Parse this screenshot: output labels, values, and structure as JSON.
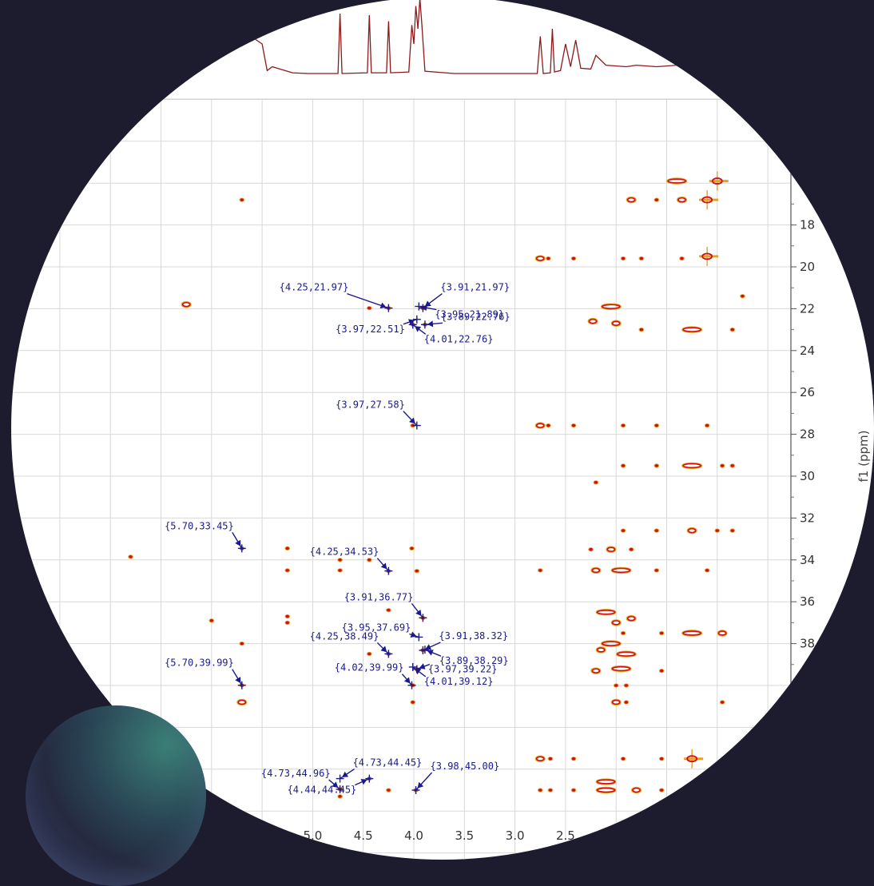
{
  "chart_data": {
    "type": "heatmap",
    "subtype": "2D NMR contour plot (HSQC/HMBC-style) with 1D projection",
    "title": "",
    "xlabel": "",
    "ylabel": "f1 (ppm)",
    "x_axis": {
      "ticks": [
        "5.0",
        "4.5",
        "4.0",
        "3.5",
        "3.0",
        "2.5"
      ],
      "reversed": true
    },
    "y_axis": {
      "ticks": [
        "18",
        "20",
        "22",
        "24",
        "26",
        "28",
        "30",
        "32",
        "34",
        "36",
        "38"
      ],
      "reversed": true,
      "position": "right"
    },
    "grid": true,
    "contour_colors": {
      "outer": "#e8a020",
      "inner": "#d01010",
      "core": "#8a0000"
    },
    "projection_color": "#8b1a1a",
    "annotation_color": "#1a1a8c",
    "annotations": [
      {
        "label": "{4.25,21.97}",
        "x": 4.25,
        "y": 21.97
      },
      {
        "label": "{3.91,21.97}",
        "x": 3.91,
        "y": 21.97
      },
      {
        "label": "{3.89,22.76}",
        "x": 3.89,
        "y": 22.76
      },
      {
        "label": "{3.95,21.89}",
        "x": 3.95,
        "y": 21.89
      },
      {
        "label": "{3.97,22.51}",
        "x": 3.97,
        "y": 22.51
      },
      {
        "label": "{4.01,22.76}",
        "x": 4.01,
        "y": 22.76
      },
      {
        "label": "{3.97,27.58}",
        "x": 3.97,
        "y": 27.58
      },
      {
        "label": "{5.70,33.45}",
        "x": 5.7,
        "y": 33.45
      },
      {
        "label": "{4.25,34.53}",
        "x": 4.25,
        "y": 34.53
      },
      {
        "label": "{3.91,36.77}",
        "x": 3.91,
        "y": 36.77
      },
      {
        "label": "{3.95,37.69}",
        "x": 3.95,
        "y": 37.69
      },
      {
        "label": "{3.91,38.32}",
        "x": 3.91,
        "y": 38.32
      },
      {
        "label": "{4.25,38.49}",
        "x": 4.25,
        "y": 38.49
      },
      {
        "label": "{3.97,39.22}",
        "x": 3.97,
        "y": 39.22
      },
      {
        "label": "{3.89,38.29}",
        "x": 3.89,
        "y": 38.29
      },
      {
        "label": "{4.02,39.99}",
        "x": 4.02,
        "y": 39.99
      },
      {
        "label": "{5.70,39.99}",
        "x": 5.7,
        "y": 39.99
      },
      {
        "label": "{4.01,39.12}",
        "x": 4.01,
        "y": 39.12
      },
      {
        "label": "{4.73,44.96}",
        "x": 4.73,
        "y": 44.96
      },
      {
        "label": "{4.73,44.45}",
        "x": 4.73,
        "y": 44.45
      },
      {
        "label": "{3.98,45.00}",
        "x": 3.98,
        "y": 45.0
      },
      {
        "label": "{4.44,44.45}",
        "x": 4.44,
        "y": 44.45
      }
    ],
    "peaks": [
      {
        "x": 5.7,
        "y": 16.8,
        "s": "dot"
      },
      {
        "x": 6.25,
        "y": 21.8,
        "s": "oval"
      },
      {
        "x": 5.7,
        "y": 33.45,
        "s": "dot"
      },
      {
        "x": 6.0,
        "y": 36.9,
        "s": "dot"
      },
      {
        "x": 5.7,
        "y": 38.0,
        "s": "dot"
      },
      {
        "x": 5.7,
        "y": 39.99,
        "s": "dot"
      },
      {
        "x": 5.7,
        "y": 40.8,
        "s": "oval"
      },
      {
        "x": 5.25,
        "y": 33.45,
        "s": "dot"
      },
      {
        "x": 5.25,
        "y": 34.5,
        "s": "dot"
      },
      {
        "x": 5.25,
        "y": 36.7,
        "s": "dot"
      },
      {
        "x": 5.25,
        "y": 37.0,
        "s": "dot"
      },
      {
        "x": 4.73,
        "y": 34.0,
        "s": "dot"
      },
      {
        "x": 4.73,
        "y": 34.5,
        "s": "dot"
      },
      {
        "x": 4.73,
        "y": 44.96,
        "s": "dot"
      },
      {
        "x": 4.73,
        "y": 45.3,
        "s": "dot"
      },
      {
        "x": 4.44,
        "y": 21.97,
        "s": "dot"
      },
      {
        "x": 4.44,
        "y": 34.0,
        "s": "dot"
      },
      {
        "x": 4.44,
        "y": 38.49,
        "s": "dot"
      },
      {
        "x": 4.44,
        "y": 44.45,
        "s": "dot"
      },
      {
        "x": 4.25,
        "y": 21.97,
        "s": "dot"
      },
      {
        "x": 4.25,
        "y": 34.53,
        "s": "dot"
      },
      {
        "x": 4.25,
        "y": 36.4,
        "s": "dot"
      },
      {
        "x": 4.25,
        "y": 38.49,
        "s": "dot"
      },
      {
        "x": 4.25,
        "y": 45.0,
        "s": "dot"
      },
      {
        "x": 4.01,
        "y": 22.76,
        "s": "dot"
      },
      {
        "x": 4.01,
        "y": 27.58,
        "s": "dot"
      },
      {
        "x": 4.02,
        "y": 33.45,
        "s": "dot"
      },
      {
        "x": 3.97,
        "y": 34.53,
        "s": "dot"
      },
      {
        "x": 3.91,
        "y": 36.77,
        "s": "dot"
      },
      {
        "x": 3.91,
        "y": 38.32,
        "s": "dot"
      },
      {
        "x": 3.97,
        "y": 39.22,
        "s": "dot"
      },
      {
        "x": 4.01,
        "y": 39.99,
        "s": "dot"
      },
      {
        "x": 4.01,
        "y": 40.8,
        "s": "dot"
      },
      {
        "x": 3.98,
        "y": 45.0,
        "s": "dot"
      },
      {
        "x": 3.91,
        "y": 21.97,
        "s": "dot"
      },
      {
        "x": 3.89,
        "y": 22.76,
        "s": "dot"
      },
      {
        "x": 2.75,
        "y": 19.6,
        "s": "oval"
      },
      {
        "x": 2.67,
        "y": 19.6,
        "s": "dot"
      },
      {
        "x": 2.42,
        "y": 19.6,
        "s": "dot"
      },
      {
        "x": 2.75,
        "y": 27.58,
        "s": "oval"
      },
      {
        "x": 2.67,
        "y": 27.58,
        "s": "dot"
      },
      {
        "x": 2.42,
        "y": 27.58,
        "s": "dot"
      },
      {
        "x": 2.75,
        "y": 34.5,
        "s": "dot"
      },
      {
        "x": 2.75,
        "y": 43.5,
        "s": "oval"
      },
      {
        "x": 2.65,
        "y": 43.5,
        "s": "dot"
      },
      {
        "x": 2.42,
        "y": 43.5,
        "s": "dot"
      },
      {
        "x": 2.75,
        "y": 45.0,
        "s": "dot"
      },
      {
        "x": 2.65,
        "y": 45.0,
        "s": "dot"
      },
      {
        "x": 2.42,
        "y": 45.0,
        "s": "dot"
      },
      {
        "x": 2.23,
        "y": 22.6,
        "s": "oval"
      },
      {
        "x": 2.05,
        "y": 21.9,
        "s": "wide"
      },
      {
        "x": 2.0,
        "y": 22.7,
        "s": "oval"
      },
      {
        "x": 1.75,
        "y": 23.0,
        "s": "dot"
      },
      {
        "x": 1.25,
        "y": 23.0,
        "s": "wide"
      },
      {
        "x": 0.85,
        "y": 23.0,
        "s": "dot"
      },
      {
        "x": 1.75,
        "y": 19.6,
        "s": "dot"
      },
      {
        "x": 1.35,
        "y": 19.6,
        "s": "dot"
      },
      {
        "x": 1.1,
        "y": 19.5,
        "s": "cross"
      },
      {
        "x": 1.93,
        "y": 19.6,
        "s": "dot"
      },
      {
        "x": 1.93,
        "y": 27.58,
        "s": "dot"
      },
      {
        "x": 1.6,
        "y": 27.58,
        "s": "dot"
      },
      {
        "x": 1.1,
        "y": 27.58,
        "s": "dot"
      },
      {
        "x": 1.93,
        "y": 29.5,
        "s": "dot"
      },
      {
        "x": 1.6,
        "y": 29.5,
        "s": "dot"
      },
      {
        "x": 1.25,
        "y": 29.5,
        "s": "wide"
      },
      {
        "x": 0.95,
        "y": 29.5,
        "s": "dot"
      },
      {
        "x": 0.85,
        "y": 29.5,
        "s": "dot"
      },
      {
        "x": 2.2,
        "y": 30.3,
        "s": "dot"
      },
      {
        "x": 1.93,
        "y": 32.6,
        "s": "dot"
      },
      {
        "x": 1.6,
        "y": 32.6,
        "s": "dot"
      },
      {
        "x": 1.25,
        "y": 32.6,
        "s": "oval"
      },
      {
        "x": 1.0,
        "y": 32.6,
        "s": "dot"
      },
      {
        "x": 0.85,
        "y": 32.6,
        "s": "dot"
      },
      {
        "x": 2.25,
        "y": 33.5,
        "s": "dot"
      },
      {
        "x": 2.05,
        "y": 33.5,
        "s": "oval"
      },
      {
        "x": 1.85,
        "y": 33.5,
        "s": "dot"
      },
      {
        "x": 2.2,
        "y": 34.5,
        "s": "oval"
      },
      {
        "x": 1.95,
        "y": 34.5,
        "s": "wide"
      },
      {
        "x": 1.6,
        "y": 34.5,
        "s": "dot"
      },
      {
        "x": 1.1,
        "y": 34.5,
        "s": "dot"
      },
      {
        "x": 2.1,
        "y": 36.5,
        "s": "wide"
      },
      {
        "x": 2.0,
        "y": 37.0,
        "s": "oval"
      },
      {
        "x": 1.85,
        "y": 36.8,
        "s": "oval"
      },
      {
        "x": 1.93,
        "y": 37.5,
        "s": "dot"
      },
      {
        "x": 1.55,
        "y": 37.5,
        "s": "dot"
      },
      {
        "x": 1.25,
        "y": 37.5,
        "s": "wide"
      },
      {
        "x": 0.95,
        "y": 37.5,
        "s": "oval"
      },
      {
        "x": 2.15,
        "y": 38.3,
        "s": "oval"
      },
      {
        "x": 2.05,
        "y": 38.0,
        "s": "wide"
      },
      {
        "x": 1.9,
        "y": 38.5,
        "s": "wide"
      },
      {
        "x": 1.95,
        "y": 39.2,
        "s": "wide"
      },
      {
        "x": 2.2,
        "y": 39.3,
        "s": "oval"
      },
      {
        "x": 2.0,
        "y": 40.0,
        "s": "dot"
      },
      {
        "x": 1.9,
        "y": 40.0,
        "s": "dot"
      },
      {
        "x": 2.0,
        "y": 40.8,
        "s": "oval"
      },
      {
        "x": 1.9,
        "y": 40.8,
        "s": "dot"
      },
      {
        "x": 1.55,
        "y": 39.3,
        "s": "dot"
      },
      {
        "x": 0.95,
        "y": 40.8,
        "s": "dot"
      },
      {
        "x": 1.93,
        "y": 43.5,
        "s": "dot"
      },
      {
        "x": 1.55,
        "y": 43.5,
        "s": "dot"
      },
      {
        "x": 1.25,
        "y": 43.5,
        "s": "cross"
      },
      {
        "x": 2.1,
        "y": 44.6,
        "s": "wide"
      },
      {
        "x": 2.1,
        "y": 45.0,
        "s": "wide"
      },
      {
        "x": 1.8,
        "y": 45.0,
        "s": "oval"
      },
      {
        "x": 1.55,
        "y": 45.0,
        "s": "dot"
      },
      {
        "x": 1.6,
        "y": 16.8,
        "s": "dot"
      },
      {
        "x": 1.85,
        "y": 16.8,
        "s": "oval"
      },
      {
        "x": 1.35,
        "y": 16.8,
        "s": "oval"
      },
      {
        "x": 1.1,
        "y": 16.8,
        "s": "cross"
      },
      {
        "x": 1.4,
        "y": 15.9,
        "s": "wide"
      },
      {
        "x": 1.0,
        "y": 15.9,
        "s": "cross"
      },
      {
        "x": 0.75,
        "y": 21.4,
        "s": "dot"
      },
      {
        "x": 6.8,
        "y": 33.85,
        "s": "dot"
      }
    ]
  }
}
